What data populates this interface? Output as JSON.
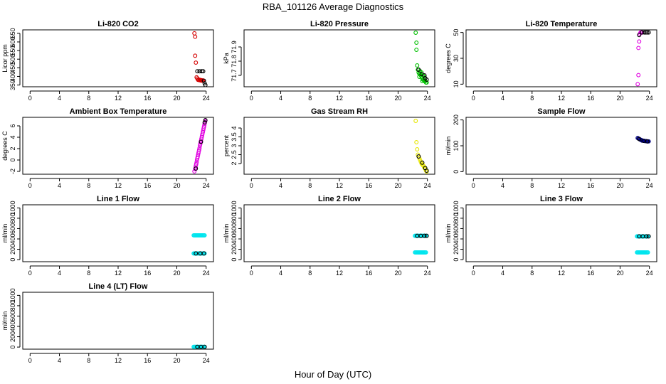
{
  "page": {
    "title": "RBA_101126  Average Diagnostics",
    "xlabel": "Hour of Day (UTC)"
  },
  "chart_data": [
    {
      "type": "scatter",
      "title": "Li-820 CO2",
      "ylabel": "Licor ppm",
      "xlim": [
        -1,
        25
      ],
      "xticks": [
        0,
        4,
        8,
        12,
        16,
        20,
        24
      ],
      "ylim": [
        340,
        670
      ],
      "yticks": [
        350,
        400,
        450,
        500,
        550,
        600,
        650
      ],
      "series": [
        {
          "name": "red",
          "color": "#d40000",
          "x": [
            22.4,
            22.5,
            22.5,
            22.6,
            22.7,
            22.8,
            22.9,
            23.0,
            23.1,
            23.2,
            23.3,
            23.4,
            23.5,
            23.6
          ],
          "y": [
            650,
            630,
            520,
            480,
            395,
            388,
            380,
            382,
            378,
            380,
            376,
            378,
            375,
            377
          ]
        },
        {
          "name": "black",
          "color": "#000000",
          "x": [
            22.8,
            23.1,
            23.4,
            23.6,
            23.7,
            23.8,
            23.9
          ],
          "y": [
            430,
            430,
            430,
            430,
            375,
            360,
            350
          ]
        }
      ]
    },
    {
      "type": "scatter",
      "title": "Li-820 Pressure",
      "ylabel": "kPa",
      "xlim": [
        -1,
        25
      ],
      "xticks": [
        0,
        4,
        8,
        12,
        16,
        20,
        24
      ],
      "ylim": [
        71.62,
        72.02
      ],
      "yticks": [
        71.7,
        71.8,
        71.9
      ],
      "series": [
        {
          "name": "green",
          "color": "#00c000",
          "x": [
            22.4,
            22.5,
            22.5,
            22.6,
            22.7,
            22.8,
            22.9,
            23.0,
            23.1,
            23.2,
            23.3,
            23.4,
            23.5,
            23.6,
            23.7,
            23.8,
            23.9,
            23.0,
            23.2,
            23.4,
            23.6,
            22.9,
            23.3
          ],
          "y": [
            72.0,
            71.93,
            71.88,
            71.77,
            71.74,
            71.72,
            71.71,
            71.71,
            71.7,
            71.69,
            71.68,
            71.67,
            71.67,
            71.66,
            71.66,
            71.65,
            71.65,
            71.73,
            71.72,
            71.7,
            71.69,
            71.69,
            71.66
          ]
        },
        {
          "name": "black",
          "color": "#000000",
          "x": [
            22.8,
            23.2,
            23.6,
            23.7,
            23.9
          ],
          "y": [
            71.74,
            71.71,
            71.7,
            71.68,
            71.67
          ]
        }
      ]
    },
    {
      "type": "scatter",
      "title": "Li-820 Temperature",
      "ylabel": "degrees C",
      "xlim": [
        -1,
        25
      ],
      "xticks": [
        0,
        4,
        8,
        12,
        16,
        20,
        24
      ],
      "ylim": [
        8,
        52
      ],
      "yticks": [
        10,
        30,
        50
      ],
      "series": [
        {
          "name": "magenta",
          "color": "#e000e0",
          "x": [
            22.4,
            22.5,
            22.5,
            22.6,
            22.7,
            22.8,
            22.9,
            23.0
          ],
          "y": [
            10,
            17,
            38,
            43,
            49,
            50,
            50,
            50
          ]
        },
        {
          "name": "black",
          "color": "#000000",
          "x": [
            22.6,
            23.0,
            23.3,
            23.5,
            23.7,
            23.9
          ],
          "y": [
            48,
            50,
            50,
            50,
            50,
            50
          ]
        }
      ]
    },
    {
      "type": "scatter",
      "title": "Ambient Box Temperature",
      "ylabel": "degrees C",
      "xlim": [
        -1,
        25
      ],
      "xticks": [
        0,
        4,
        8,
        12,
        16,
        20,
        24
      ],
      "ylim": [
        -2.5,
        7.5
      ],
      "yticks": [
        -2,
        0,
        2,
        4,
        6
      ],
      "series": [
        {
          "name": "magenta",
          "color": "#e000e0",
          "x": [
            22.4,
            22.5,
            22.6,
            22.7,
            22.8,
            22.9,
            23.0,
            23.1,
            23.2,
            23.3,
            23.4,
            23.5,
            23.6,
            23.7,
            23.8,
            23.9,
            22.55,
            22.65,
            22.75,
            22.85,
            22.95,
            23.05,
            23.15,
            23.25,
            23.35,
            23.45,
            23.55,
            23.65,
            23.75,
            23.85
          ],
          "y": [
            -2,
            -1.6,
            -1.0,
            -0.4,
            0.3,
            0.9,
            1.5,
            2.1,
            2.8,
            3.4,
            4.0,
            4.6,
            5.2,
            5.8,
            6.4,
            6.9,
            -1.3,
            -0.7,
            0.0,
            0.6,
            1.2,
            1.8,
            2.5,
            3.1,
            3.7,
            4.3,
            4.9,
            5.5,
            6.1,
            6.7
          ]
        },
        {
          "name": "black",
          "color": "#000000",
          "x": [
            22.6,
            23.3,
            23.8,
            23.9
          ],
          "y": [
            -1.5,
            3.2,
            6.6,
            7.0
          ]
        }
      ]
    },
    {
      "type": "scatter",
      "title": "Gas Stream RH",
      "ylabel": "percent",
      "xlim": [
        -1,
        25
      ],
      "xticks": [
        0,
        4,
        8,
        12,
        16,
        20,
        24
      ],
      "ylim": [
        1.4,
        4.6
      ],
      "yticks": [
        2.0,
        2.5,
        3.0,
        3.5,
        4.0
      ],
      "series": [
        {
          "name": "yellow",
          "color": "#e6e600",
          "x": [
            22.4,
            22.5,
            22.6,
            22.7,
            22.8,
            22.9,
            23.0,
            23.1,
            23.2,
            23.3,
            23.4,
            23.5,
            23.6,
            23.7,
            23.8,
            23.9
          ],
          "y": [
            4.4,
            3.2,
            2.8,
            2.5,
            2.4,
            2.3,
            2.2,
            2.1,
            2.0,
            1.95,
            1.9,
            1.85,
            1.75,
            1.7,
            1.6,
            1.55
          ]
        },
        {
          "name": "black",
          "color": "#000000",
          "x": [
            22.8,
            23.3,
            23.7,
            23.9
          ],
          "y": [
            2.4,
            2.05,
            1.75,
            1.6
          ]
        }
      ]
    },
    {
      "type": "scatter",
      "title": "Sample Flow",
      "ylabel": "ml/min",
      "xlim": [
        -1,
        25
      ],
      "xticks": [
        0,
        4,
        8,
        12,
        16,
        20,
        24
      ],
      "ylim": [
        -10,
        210
      ],
      "yticks": [
        0,
        100,
        200
      ],
      "series": [
        {
          "name": "navy",
          "color": "#000080",
          "x": [
            22.4,
            22.5,
            22.6,
            22.7,
            22.8,
            22.9,
            23.0,
            23.1,
            23.2,
            23.3,
            23.4,
            23.5,
            23.6,
            23.7,
            23.8,
            23.9
          ],
          "y": [
            130,
            128,
            127,
            125,
            123,
            122,
            120,
            120,
            119,
            119,
            118,
            118,
            118,
            117,
            117,
            117
          ]
        },
        {
          "name": "black",
          "color": "#000000",
          "x": [
            22.6,
            23.2,
            23.7
          ],
          "y": [
            126,
            119,
            117
          ]
        }
      ]
    },
    {
      "type": "scatter",
      "title": "Line 1 Flow",
      "ylabel": "ml/min",
      "xlim": [
        -1,
        25
      ],
      "xticks": [
        0,
        4,
        8,
        12,
        16,
        20,
        24
      ],
      "ylim": [
        -40,
        1060
      ],
      "yticks": [
        0,
        200,
        400,
        600,
        800,
        1000
      ],
      "series": [
        {
          "name": "cyan",
          "color": "#00e5ee",
          "x": [
            22.3,
            22.4,
            22.5,
            22.6,
            22.7,
            22.8,
            22.9,
            23.0,
            23.1,
            23.2,
            23.3,
            23.4,
            23.5,
            23.6,
            23.7,
            23.8,
            22.3,
            22.4,
            22.5,
            22.6,
            22.7,
            22.8,
            22.9,
            23.0,
            23.1,
            23.2,
            23.3,
            23.4,
            23.5,
            23.6,
            23.7,
            23.8
          ],
          "y": [
            470,
            470,
            470,
            470,
            470,
            470,
            470,
            470,
            470,
            470,
            470,
            470,
            470,
            470,
            470,
            470,
            120,
            120,
            120,
            120,
            120,
            120,
            120,
            120,
            120,
            120,
            120,
            120,
            120,
            120,
            120,
            120
          ]
        },
        {
          "name": "black",
          "color": "#000000",
          "x": [
            22.6,
            23.2,
            23.7
          ],
          "y": [
            120,
            120,
            120
          ]
        }
      ]
    },
    {
      "type": "scatter",
      "title": "Line 2 Flow",
      "ylabel": "ml/min",
      "xlim": [
        -1,
        25
      ],
      "xticks": [
        0,
        4,
        8,
        12,
        16,
        20,
        24
      ],
      "ylim": [
        -40,
        1060
      ],
      "yticks": [
        0,
        200,
        400,
        600,
        800,
        1000
      ],
      "series": [
        {
          "name": "cyan",
          "color": "#00e5ee",
          "x": [
            22.3,
            22.4,
            22.5,
            22.6,
            22.7,
            22.8,
            22.9,
            23.0,
            23.1,
            23.2,
            23.3,
            23.4,
            23.5,
            23.6,
            23.7,
            23.8,
            22.3,
            22.4,
            22.5,
            22.6,
            22.7,
            22.8,
            22.9,
            23.0,
            23.1,
            23.2,
            23.3,
            23.4,
            23.5,
            23.6,
            23.7,
            23.8
          ],
          "y": [
            460,
            460,
            460,
            460,
            460,
            460,
            460,
            460,
            460,
            460,
            460,
            460,
            460,
            460,
            460,
            460,
            140,
            140,
            140,
            140,
            140,
            140,
            140,
            140,
            140,
            140,
            140,
            140,
            140,
            140,
            140,
            140
          ]
        },
        {
          "name": "black",
          "color": "#000000",
          "x": [
            22.6,
            23.1,
            23.6,
            23.9
          ],
          "y": [
            460,
            460,
            460,
            460
          ]
        }
      ]
    },
    {
      "type": "scatter",
      "title": "Line 3 Flow",
      "ylabel": "ml/min",
      "xlim": [
        -1,
        25
      ],
      "xticks": [
        0,
        4,
        8,
        12,
        16,
        20,
        24
      ],
      "ylim": [
        -40,
        1060
      ],
      "yticks": [
        0,
        200,
        400,
        600,
        800,
        1000
      ],
      "series": [
        {
          "name": "cyan",
          "color": "#00e5ee",
          "x": [
            22.3,
            22.4,
            22.5,
            22.6,
            22.7,
            22.8,
            22.9,
            23.0,
            23.1,
            23.2,
            23.3,
            23.4,
            23.5,
            23.6,
            23.7,
            23.8,
            22.3,
            22.4,
            22.5,
            22.6,
            22.7,
            22.8,
            22.9,
            23.0,
            23.1,
            23.2,
            23.3,
            23.4,
            23.5,
            23.6,
            23.7,
            23.8
          ],
          "y": [
            450,
            450,
            450,
            450,
            450,
            450,
            450,
            450,
            450,
            450,
            450,
            450,
            450,
            450,
            450,
            450,
            140,
            140,
            140,
            140,
            140,
            140,
            140,
            140,
            140,
            140,
            140,
            140,
            140,
            140,
            140,
            140
          ]
        },
        {
          "name": "black",
          "color": "#000000",
          "x": [
            22.6,
            23.1,
            23.6,
            23.9
          ],
          "y": [
            450,
            450,
            450,
            450
          ]
        }
      ]
    },
    {
      "type": "scatter",
      "title": "Line 4 (LT) Flow",
      "ylabel": "ml/min",
      "xlim": [
        -1,
        25
      ],
      "xticks": [
        0,
        4,
        8,
        12,
        16,
        20,
        24
      ],
      "ylim": [
        -40,
        1060
      ],
      "yticks": [
        0,
        200,
        400,
        600,
        800,
        1000
      ],
      "series": [
        {
          "name": "cyan",
          "color": "#00e5ee",
          "x": [
            22.3,
            22.4,
            22.5,
            22.6,
            22.7,
            22.8,
            22.9,
            23.0,
            23.1,
            23.2,
            23.3,
            23.4,
            23.5,
            23.6,
            23.7,
            23.8
          ],
          "y": [
            5,
            5,
            5,
            5,
            5,
            5,
            5,
            5,
            5,
            5,
            5,
            5,
            5,
            5,
            5,
            5
          ]
        },
        {
          "name": "black",
          "color": "#000000",
          "x": [
            22.8,
            23.3,
            23.8
          ],
          "y": [
            5,
            5,
            5
          ]
        }
      ]
    }
  ]
}
